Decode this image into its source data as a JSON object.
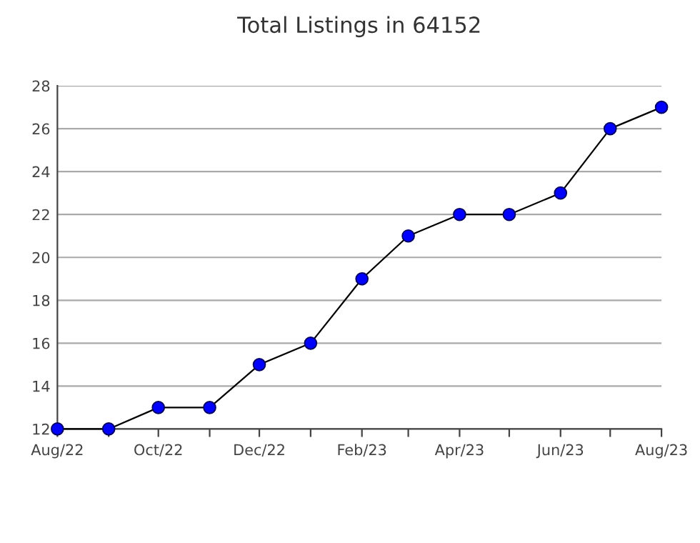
{
  "chart_data": {
    "type": "line",
    "title": "Total Listings in 64152",
    "x": [
      "2022-08",
      "2022-09",
      "2022-10",
      "2022-11",
      "2022-12",
      "2023-01",
      "2023-02",
      "2023-03",
      "2023-04",
      "2023-05",
      "2023-06",
      "2023-07",
      "2023-08"
    ],
    "series": [
      {
        "color": "#0000ff",
        "values": [
          12,
          12,
          13,
          13,
          15,
          16,
          19,
          21,
          22,
          22,
          23,
          26,
          27
        ]
      }
    ],
    "xlim": [
      "2022-08",
      "2023-08"
    ],
    "xticks": [
      {
        "value": "2022-08",
        "label": "Aug/22"
      },
      {
        "value": "2022-09",
        "label": null
      },
      {
        "value": "2022-10",
        "label": "Oct/22"
      },
      {
        "value": "2022-11",
        "label": null
      },
      {
        "value": "2022-12",
        "label": "Dec/22"
      },
      {
        "value": "2023-01",
        "label": null
      },
      {
        "value": "2023-02",
        "label": "Feb/23"
      },
      {
        "value": "2023-03",
        "label": null
      },
      {
        "value": "2023-04",
        "label": "Apr/23"
      },
      {
        "value": "2023-05",
        "label": null
      },
      {
        "value": "2023-06",
        "label": "Jun/23"
      },
      {
        "value": "2023-07",
        "label": null
      },
      {
        "value": "2023-08",
        "label": "Aug/23"
      }
    ],
    "ylim": [
      12,
      28
    ],
    "yticks": [
      12,
      14,
      16,
      18,
      20,
      22,
      24,
      26,
      28
    ],
    "grid": "y",
    "marker": "circle",
    "line_style": "solid",
    "legend": false
  }
}
